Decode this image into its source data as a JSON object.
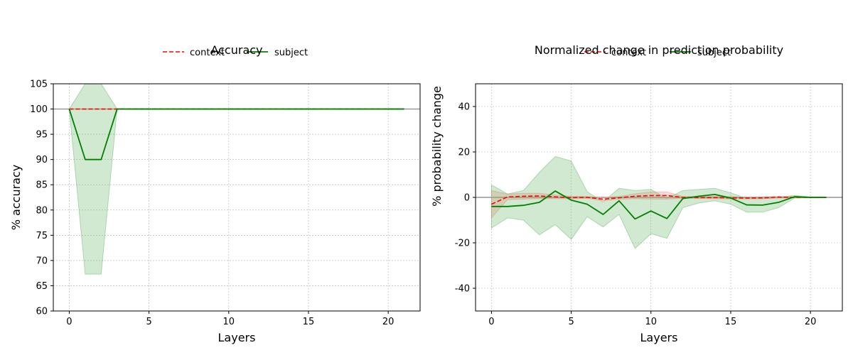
{
  "chart_data": [
    {
      "type": "line",
      "title": "Accuracy",
      "xlabel": "Layers",
      "ylabel": "% accuracy",
      "xlim": [
        -1,
        22
      ],
      "ylim": [
        60,
        105
      ],
      "xticks": [
        0,
        5,
        10,
        15,
        20
      ],
      "yticks": [
        60,
        65,
        70,
        75,
        80,
        85,
        90,
        95,
        100,
        105
      ],
      "grid": true,
      "legend_placement": "top-center",
      "reference_line": 100,
      "x": [
        0,
        1,
        2,
        3,
        4,
        5,
        6,
        7,
        8,
        9,
        10,
        11,
        12,
        13,
        14,
        15,
        16,
        17,
        18,
        19,
        20,
        21
      ],
      "series": [
        {
          "name": "context",
          "style": "dashed",
          "color": "#ff0000",
          "band_color": "#ff8080",
          "values": [
            100,
            100,
            100,
            100,
            100,
            100,
            100,
            100,
            100,
            100,
            100,
            100,
            100,
            100,
            100,
            100,
            100,
            100,
            100,
            100,
            100,
            100
          ],
          "lower": [
            100,
            100,
            100,
            100,
            100,
            100,
            100,
            100,
            100,
            100,
            100,
            100,
            100,
            100,
            100,
            100,
            100,
            100,
            100,
            100,
            100,
            100
          ],
          "upper": [
            100,
            100,
            100,
            100,
            100,
            100,
            100,
            100,
            100,
            100,
            100,
            100,
            100,
            100,
            100,
            100,
            100,
            100,
            100,
            100,
            100,
            100
          ]
        },
        {
          "name": "subject",
          "style": "solid",
          "color": "#008000",
          "band_color": "#63b663",
          "values": [
            100,
            90,
            90,
            100,
            100,
            100,
            100,
            100,
            100,
            100,
            100,
            100,
            100,
            100,
            100,
            100,
            100,
            100,
            100,
            100,
            100,
            100
          ],
          "lower": [
            100,
            67.3,
            67.3,
            100,
            100,
            100,
            100,
            100,
            100,
            100,
            100,
            100,
            100,
            100,
            100,
            100,
            100,
            100,
            100,
            100,
            100,
            100
          ],
          "upper": [
            100,
            112.7,
            112.7,
            100,
            100,
            100,
            100,
            100,
            100,
            100,
            100,
            100,
            100,
            100,
            100,
            100,
            100,
            100,
            100,
            100,
            100,
            100
          ]
        }
      ]
    },
    {
      "type": "line",
      "title": "Normalized change in prediction probability",
      "xlabel": "Layers",
      "ylabel": "% probability change",
      "xlim": [
        -1,
        22
      ],
      "ylim": [
        -50,
        50
      ],
      "xticks": [
        0,
        5,
        10,
        15,
        20
      ],
      "yticks": [
        -40,
        -20,
        0,
        20,
        40
      ],
      "grid": true,
      "legend_placement": "top-center",
      "reference_line": 0,
      "x": [
        0,
        1,
        2,
        3,
        4,
        5,
        6,
        7,
        8,
        9,
        10,
        11,
        12,
        13,
        14,
        15,
        16,
        17,
        18,
        19,
        20,
        21
      ],
      "series": [
        {
          "name": "context",
          "style": "dashed",
          "color": "#ff0000",
          "band_color": "#ff8080",
          "values": [
            -3,
            0.2,
            0.5,
            0.6,
            0.2,
            -0.1,
            0,
            -0.8,
            -0.2,
            0.5,
            0.8,
            0.8,
            0,
            -0.1,
            -0.1,
            -0.2,
            -0.3,
            -0.2,
            0.1,
            0,
            0,
            0
          ],
          "lower": [
            -9,
            -1,
            -0.8,
            -0.5,
            -0.6,
            -0.6,
            -0.4,
            -1.5,
            -0.8,
            -0.6,
            -0.8,
            -0.8,
            -0.4,
            -0.5,
            -0.6,
            -0.7,
            -0.7,
            -0.6,
            -0.3,
            -0.2,
            -0.1,
            -0.1
          ],
          "upper": [
            3,
            1.5,
            1.8,
            1.8,
            1,
            0.5,
            0.4,
            -0.1,
            0.4,
            1.6,
            2.4,
            2.4,
            0.4,
            0.3,
            0.4,
            0.3,
            0.1,
            0.2,
            0.5,
            0.2,
            0.1,
            0.1
          ]
        },
        {
          "name": "subject",
          "style": "solid",
          "color": "#008000",
          "band_color": "#63b663",
          "values": [
            -4,
            -4,
            -3.5,
            -2.2,
            2.8,
            -1.2,
            -3,
            -7.5,
            -1.5,
            -9.5,
            -6,
            -9.3,
            -0.5,
            0.5,
            1.3,
            -0.3,
            -3.3,
            -3.4,
            -2.2,
            0.3,
            0,
            0
          ],
          "lower": [
            -13.5,
            -9,
            -10,
            -16.5,
            -12,
            -18.5,
            -8.5,
            -13,
            -7.5,
            -22.5,
            -16,
            -18,
            -4.5,
            -2.5,
            -1.5,
            -3,
            -6.5,
            -6.5,
            -4.5,
            -0.3,
            -0.2,
            -0.1
          ],
          "upper": [
            5.5,
            1.5,
            3,
            11,
            18,
            16,
            2.5,
            -2,
            4,
            3,
            3.5,
            -0.5,
            3,
            3.5,
            4,
            2,
            -0.5,
            -0.5,
            0,
            0.9,
            0.2,
            0.1
          ]
        }
      ]
    }
  ]
}
